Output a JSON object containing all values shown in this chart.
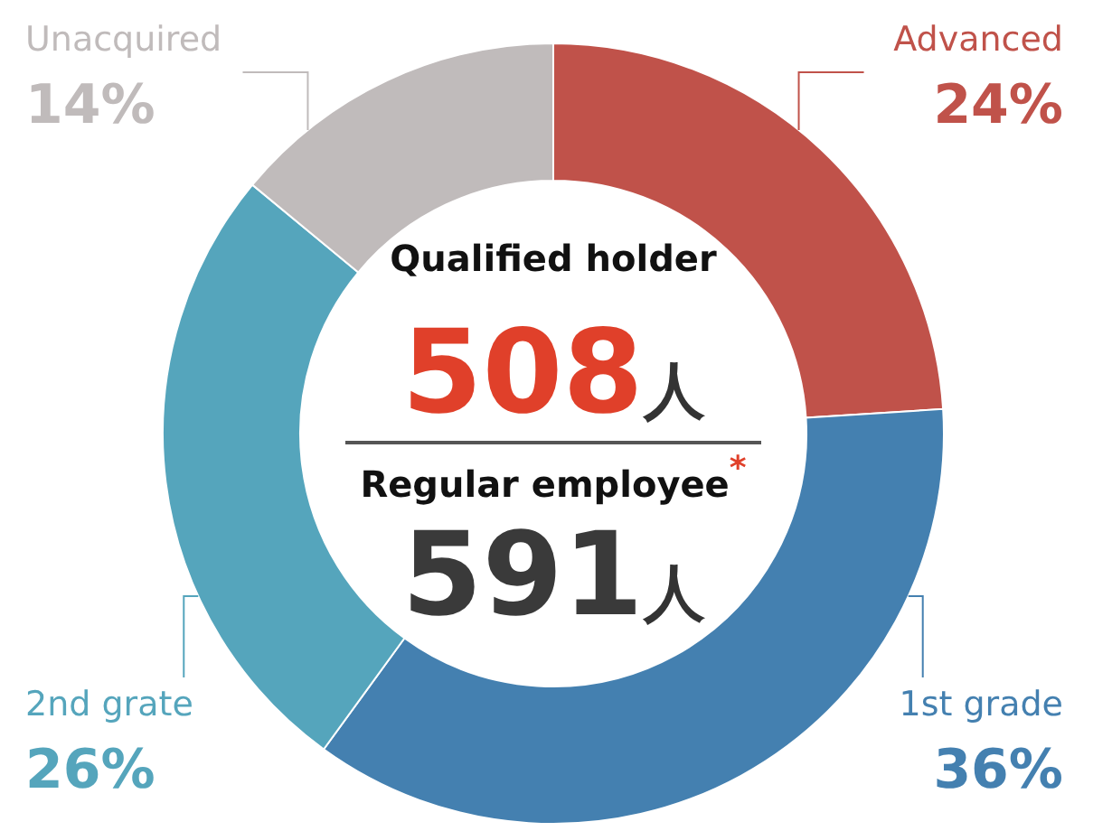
{
  "chart_data": {
    "type": "donut",
    "categories": [
      "Advanced",
      "1st grade",
      "2nd grate",
      "Unacquired"
    ],
    "values": [
      24,
      36,
      26,
      14
    ],
    "colors": [
      "#c0524a",
      "#4480b0",
      "#55a5bc",
      "#c0bbbb"
    ],
    "value_labels": [
      "24%",
      "36%",
      "26%",
      "14%"
    ],
    "annotations": [
      "Qualified holder",
      "508人",
      "Regular employee$^{*}$",
      "591人"
    ]
  }
}
